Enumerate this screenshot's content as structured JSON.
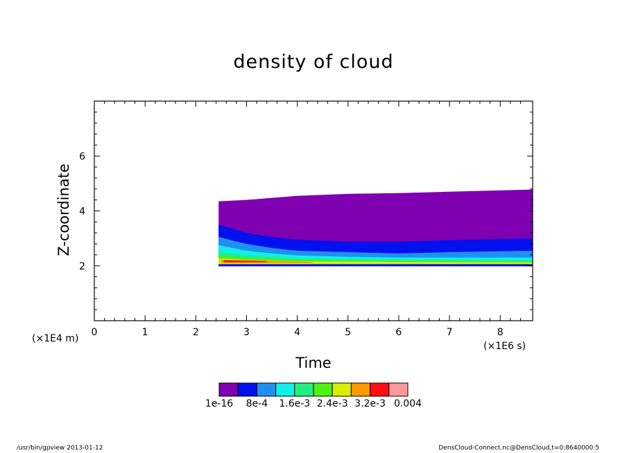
{
  "chart_data": {
    "type": "heatmap",
    "title": "density of cloud",
    "xlabel": "Time",
    "ylabel": "Z-coordinate",
    "x_scale_label": "(×1E6 s)",
    "y_scale_label": "(×1E4 m)",
    "xlim": [
      0,
      8.64
    ],
    "ylim": [
      0,
      8
    ],
    "x_ticks": [
      "0",
      "1",
      "2",
      "3",
      "4",
      "5",
      "6",
      "7",
      "8"
    ],
    "y_ticks": [
      "2",
      "4",
      "6"
    ],
    "x_tick_values": [
      0,
      1,
      2,
      3,
      4,
      5,
      6,
      7,
      8
    ],
    "y_tick_values": [
      2,
      4,
      6
    ],
    "colorbar": {
      "labels": [
        "1e-16",
        "8e-4",
        "1.6e-3",
        "2.4e-3",
        "3.2e-3",
        "0.004"
      ],
      "colors": [
        "#7f00b0",
        "#0010ee",
        "#2090f0",
        "#10f0e8",
        "#20f080",
        "#50f010",
        "#d8f000",
        "#ff9a00",
        "#ff1010",
        "#ff9898"
      ]
    },
    "cloud_start_time": 2.45,
    "layers": [
      {
        "color": "#7f00b0",
        "bottom": [
          [
            2.45,
            2.0
          ],
          [
            3,
            2.0
          ],
          [
            5,
            2.0
          ],
          [
            8.64,
            2.0
          ]
        ],
        "top": [
          [
            2.45,
            4.35
          ],
          [
            3,
            4.4
          ],
          [
            4,
            4.55
          ],
          [
            5,
            4.62
          ],
          [
            6,
            4.65
          ],
          [
            7,
            4.7
          ],
          [
            8.64,
            4.78
          ]
        ]
      },
      {
        "color": "#0010ee",
        "bottom": [
          [
            2.45,
            2.0
          ],
          [
            8.64,
            2.0
          ]
        ],
        "top": [
          [
            2.45,
            3.5
          ],
          [
            3,
            3.2
          ],
          [
            3.5,
            3.05
          ],
          [
            4,
            2.95
          ],
          [
            5,
            2.88
          ],
          [
            6,
            2.88
          ],
          [
            7,
            2.93
          ],
          [
            8.64,
            3.0
          ]
        ]
      },
      {
        "color": "#2090f0",
        "bottom": [
          [
            2.45,
            2.0
          ],
          [
            8.64,
            2.0
          ]
        ],
        "top": [
          [
            2.45,
            3.05
          ],
          [
            3,
            2.8
          ],
          [
            3.5,
            2.65
          ],
          [
            4,
            2.55
          ],
          [
            5,
            2.5
          ],
          [
            6,
            2.45
          ],
          [
            7,
            2.5
          ],
          [
            8.64,
            2.55
          ]
        ]
      },
      {
        "color": "#10f0e8",
        "bottom": [
          [
            2.45,
            2.0
          ],
          [
            8.64,
            2.0
          ]
        ],
        "top": [
          [
            2.45,
            2.75
          ],
          [
            3,
            2.55
          ],
          [
            3.5,
            2.45
          ],
          [
            4,
            2.38
          ],
          [
            5,
            2.33
          ],
          [
            6,
            2.3
          ],
          [
            7,
            2.3
          ],
          [
            8.64,
            2.3
          ]
        ]
      },
      {
        "color": "#20f080",
        "bottom": [
          [
            2.45,
            2.0
          ],
          [
            8.64,
            2.0
          ]
        ],
        "top": [
          [
            2.45,
            2.5
          ],
          [
            3,
            2.38
          ],
          [
            4,
            2.28
          ],
          [
            5,
            2.24
          ],
          [
            6,
            2.22
          ],
          [
            8.64,
            2.2
          ]
        ]
      },
      {
        "color": "#50f010",
        "bottom": [
          [
            2.45,
            2.0
          ],
          [
            8.64,
            2.0
          ]
        ],
        "top": [
          [
            2.45,
            2.35
          ],
          [
            3,
            2.28
          ],
          [
            4,
            2.2
          ],
          [
            5,
            2.18
          ],
          [
            8.64,
            2.15
          ]
        ]
      },
      {
        "color": "#d8f000",
        "bottom": [
          [
            2.45,
            2.05
          ],
          [
            8.64,
            2.05
          ]
        ],
        "top": [
          [
            2.45,
            2.27
          ],
          [
            3,
            2.22
          ],
          [
            4,
            2.16
          ],
          [
            8.64,
            2.12
          ]
        ]
      },
      {
        "color": "#ff9a00",
        "bottom": [
          [
            2.5,
            2.1
          ],
          [
            4.3,
            2.1
          ]
        ],
        "top": [
          [
            2.5,
            2.22
          ],
          [
            3.2,
            2.2
          ],
          [
            4.3,
            2.14
          ]
        ]
      },
      {
        "color": "#ff1010",
        "bottom": [
          [
            2.55,
            2.13
          ],
          [
            3.4,
            2.13
          ]
        ],
        "top": [
          [
            2.55,
            2.2
          ],
          [
            3.4,
            2.17
          ]
        ]
      },
      {
        "color": "#0010ee",
        "bottom": [
          [
            2.45,
            1.98
          ],
          [
            8.64,
            1.98
          ]
        ],
        "top": [
          [
            2.45,
            2.06
          ],
          [
            8.64,
            2.06
          ]
        ]
      }
    ]
  },
  "footer": {
    "left": "/usr/bin/gpview   2013-01-12",
    "right": "DensCloud-Connect.nc@DensCloud,t=0:8640000:5"
  }
}
